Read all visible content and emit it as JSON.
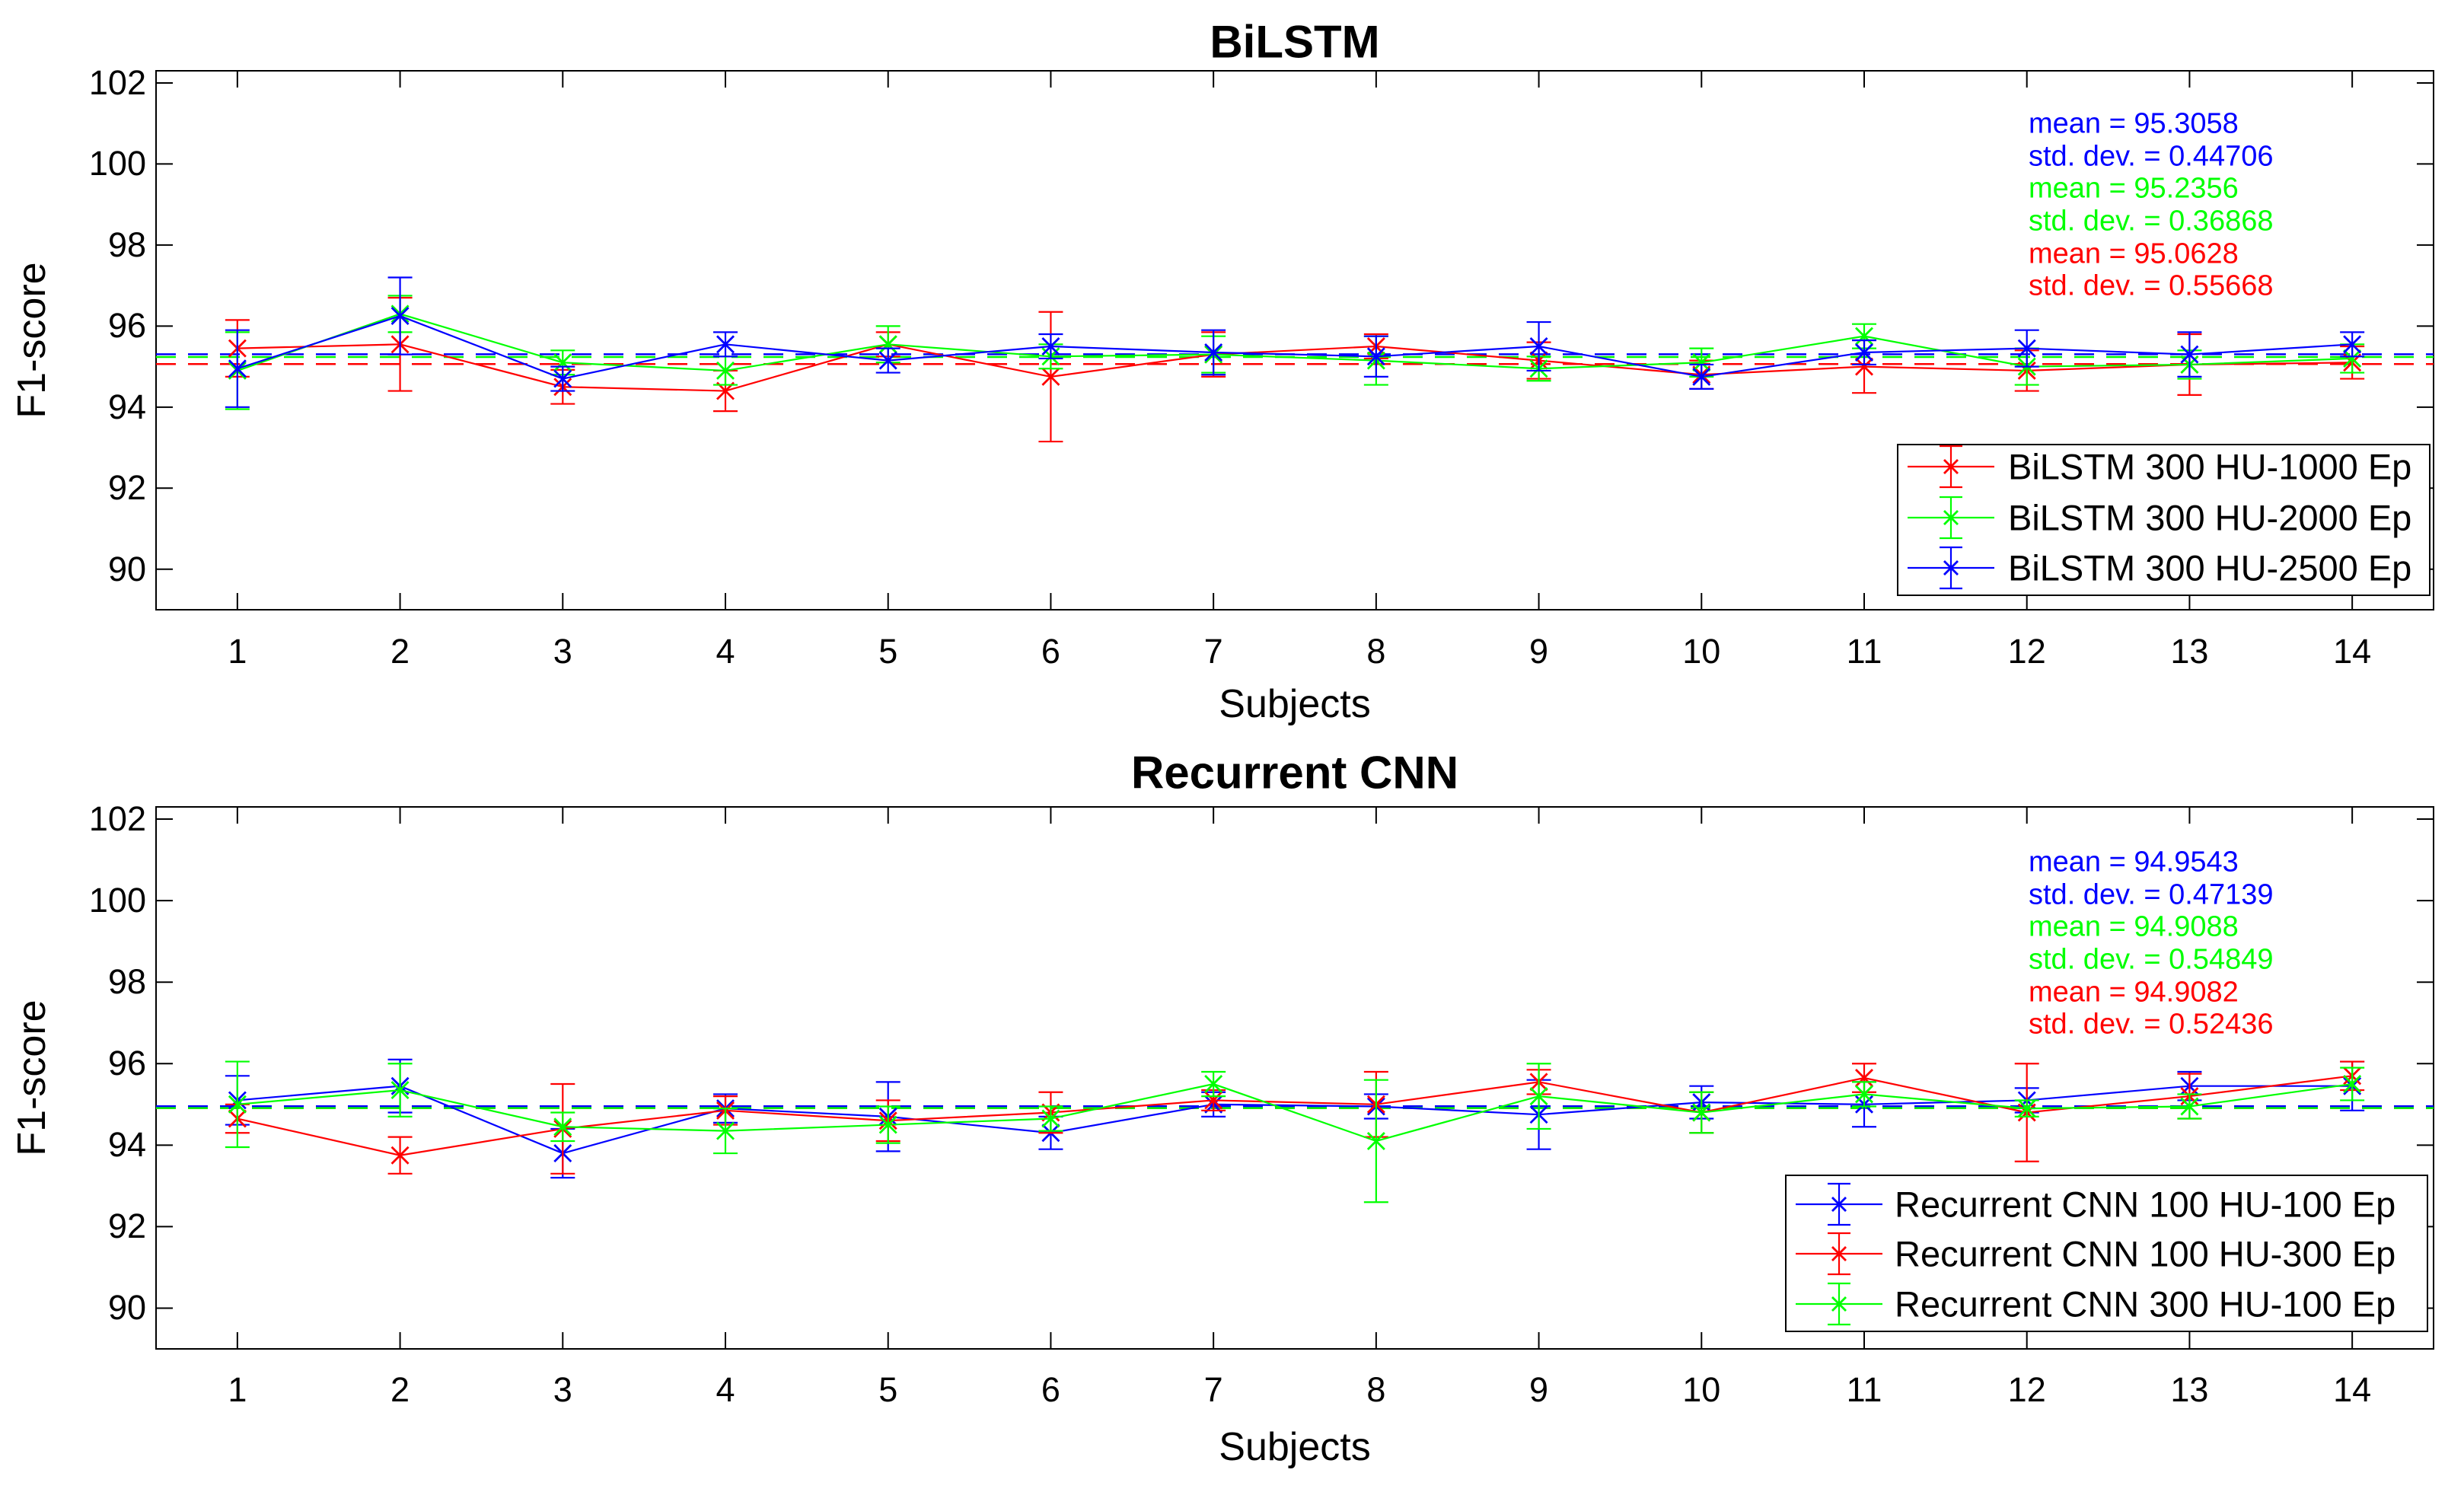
{
  "chart_data": [
    {
      "type": "line",
      "title": "BiLSTM",
      "xlabel": "Subjects",
      "ylabel": "F1-score",
      "x": [
        1,
        2,
        3,
        4,
        5,
        6,
        7,
        8,
        9,
        10,
        11,
        12,
        13,
        14
      ],
      "xlim": [
        0.5,
        14.5
      ],
      "ylim": [
        89,
        102.3
      ],
      "y_ticks": [
        90,
        92,
        94,
        96,
        98,
        100,
        102
      ],
      "grid": false,
      "legend_position": "lower right",
      "series": [
        {
          "name": "BiLSTM 300 HU-1000 Ep",
          "color": "#ff0000",
          "mean": 95.0628,
          "std_dev": 0.55668,
          "values": [
            95.45,
            95.55,
            94.5,
            94.4,
            95.55,
            94.75,
            95.3,
            95.5,
            95.15,
            94.8,
            95.0,
            94.9,
            95.05,
            95.1
          ],
          "errors": [
            0.7,
            1.15,
            0.42,
            0.5,
            0.3,
            1.6,
            0.55,
            0.3,
            0.45,
            0.35,
            0.65,
            0.5,
            0.75,
            0.4
          ]
        },
        {
          "name": "BiLSTM 300 HU-2000 Ep",
          "color": "#00ff00",
          "mean": 95.2356,
          "std_dev": 0.36868,
          "values": [
            94.9,
            96.3,
            95.1,
            94.9,
            95.55,
            95.25,
            95.3,
            95.15,
            94.95,
            95.1,
            95.75,
            95.0,
            95.05,
            95.2
          ],
          "errors": [
            0.95,
            0.45,
            0.3,
            0.35,
            0.45,
            0.3,
            0.45,
            0.6,
            0.3,
            0.35,
            0.3,
            0.45,
            0.35,
            0.35
          ]
        },
        {
          "name": "BiLSTM 300 HU-2500 Ep",
          "color": "#0000ff",
          "mean": 95.3058,
          "std_dev": 0.44706,
          "values": [
            94.95,
            96.25,
            94.7,
            95.55,
            95.15,
            95.5,
            95.35,
            95.25,
            95.5,
            94.75,
            95.35,
            95.45,
            95.3,
            95.55
          ],
          "errors": [
            0.95,
            0.95,
            0.3,
            0.3,
            0.3,
            0.3,
            0.55,
            0.5,
            0.6,
            0.3,
            0.3,
            0.45,
            0.55,
            0.3
          ]
        }
      ],
      "annotations": [
        {
          "text": "mean = 95.3058",
          "color": "#0000ff"
        },
        {
          "text": "std. dev. = 0.44706",
          "color": "#0000ff"
        },
        {
          "text": "mean = 95.2356",
          "color": "#00ff00"
        },
        {
          "text": "std. dev. = 0.36868",
          "color": "#00ff00"
        },
        {
          "text": "mean = 95.0628",
          "color": "#ff0000"
        },
        {
          "text": "std. dev. = 0.55668",
          "color": "#ff0000"
        }
      ]
    },
    {
      "type": "line",
      "title": "Recurrent CNN",
      "xlabel": "Subjects",
      "ylabel": "F1-score",
      "x": [
        1,
        2,
        3,
        4,
        5,
        6,
        7,
        8,
        9,
        10,
        11,
        12,
        13,
        14
      ],
      "xlim": [
        0.5,
        14.5
      ],
      "ylim": [
        89,
        102.3
      ],
      "y_ticks": [
        90,
        92,
        94,
        96,
        98,
        100,
        102
      ],
      "grid": false,
      "legend_position": "lower right",
      "series": [
        {
          "name": "Recurrent CNN 100 HU-100 Ep",
          "color": "#0000ff",
          "mean": 94.9543,
          "std_dev": 0.47139,
          "values": [
            95.1,
            95.45,
            93.8,
            94.9,
            94.7,
            94.3,
            95.0,
            94.95,
            94.75,
            95.05,
            95.0,
            95.1,
            95.45,
            95.45
          ],
          "errors": [
            0.6,
            0.65,
            0.6,
            0.35,
            0.85,
            0.4,
            0.3,
            0.3,
            0.85,
            0.4,
            0.55,
            0.3,
            0.35,
            0.6
          ]
        },
        {
          "name": "Recurrent CNN 100 HU-300 Ep",
          "color": "#ff0000",
          "mean": 94.9082,
          "std_dev": 0.52436,
          "values": [
            94.65,
            93.75,
            94.4,
            94.85,
            94.6,
            94.8,
            95.1,
            95.0,
            95.55,
            94.8,
            95.65,
            94.8,
            95.2,
            95.7
          ],
          "errors": [
            0.35,
            0.45,
            1.1,
            0.35,
            0.5,
            0.5,
            0.25,
            0.8,
            0.3,
            0.5,
            0.35,
            1.2,
            0.55,
            0.35
          ]
        },
        {
          "name": "Recurrent CNN 300 HU-100 Ep",
          "color": "#00ff00",
          "mean": 94.9088,
          "std_dev": 0.54849,
          "values": [
            95.0,
            95.35,
            94.45,
            94.35,
            94.5,
            94.65,
            95.5,
            94.1,
            95.2,
            94.8,
            95.25,
            94.9,
            94.95,
            95.5
          ],
          "errors": [
            1.05,
            0.65,
            0.35,
            0.55,
            0.45,
            0.3,
            0.3,
            1.5,
            0.8,
            0.5,
            0.3,
            0.2,
            0.3,
            0.4
          ]
        }
      ],
      "annotations": [
        {
          "text": "mean = 94.9543",
          "color": "#0000ff"
        },
        {
          "text": "std. dev. = 0.47139",
          "color": "#0000ff"
        },
        {
          "text": "mean = 94.9088",
          "color": "#00ff00"
        },
        {
          "text": "std. dev. = 0.54849",
          "color": "#00ff00"
        },
        {
          "text": "mean = 94.9082",
          "color": "#ff0000"
        },
        {
          "text": "std. dev. = 0.52436",
          "color": "#ff0000"
        }
      ]
    }
  ]
}
